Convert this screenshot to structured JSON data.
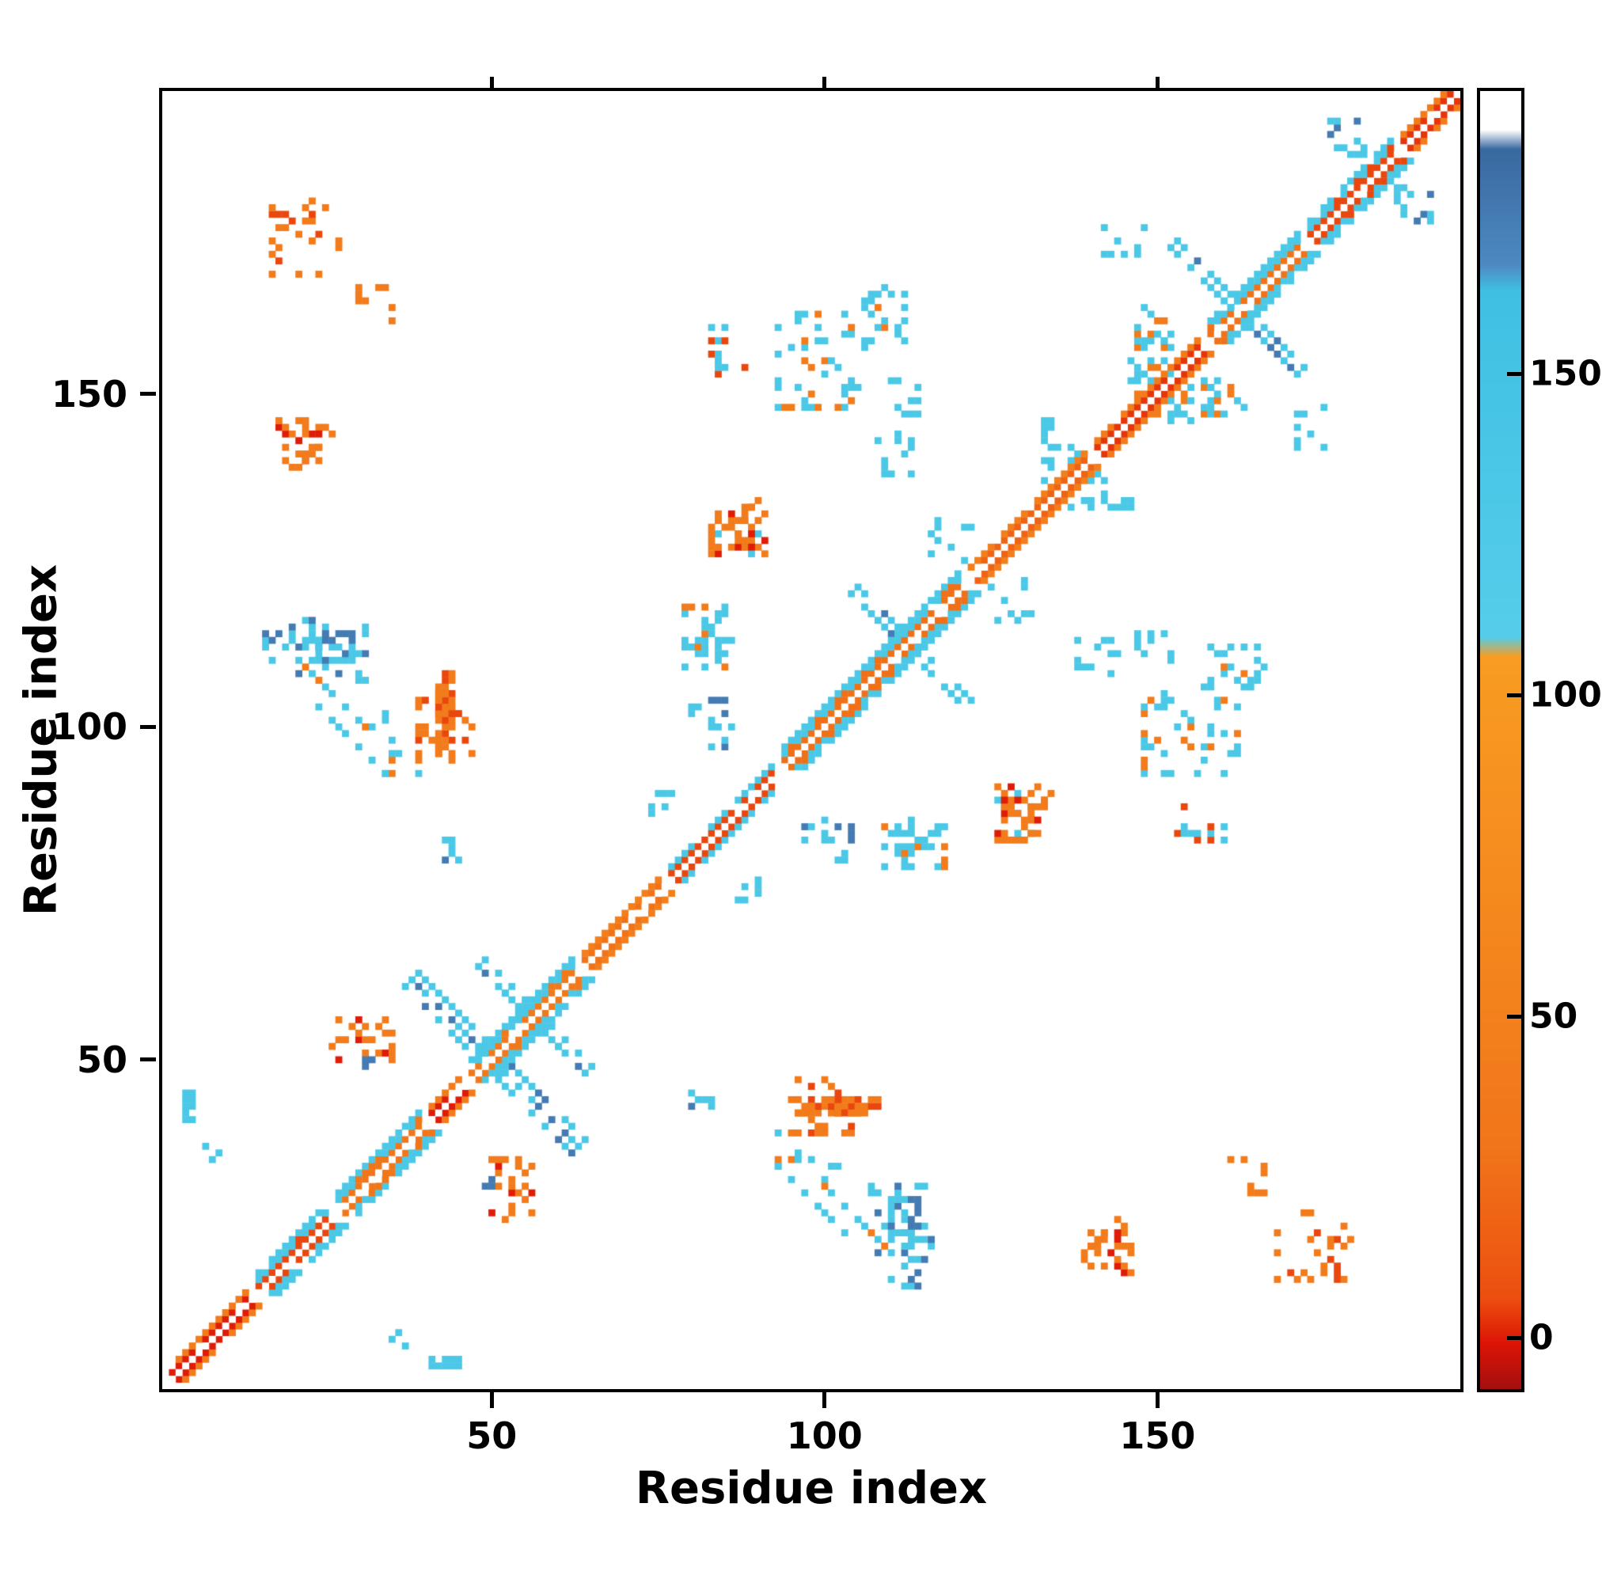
{
  "chart_data": {
    "type": "heatmap",
    "title": "",
    "xlabel": "Residue index",
    "ylabel": "Residue index",
    "x_range": [
      1,
      195
    ],
    "y_range": [
      1,
      195
    ],
    "x_ticks": [
      50,
      100,
      150
    ],
    "y_ticks": [
      50,
      100,
      150
    ],
    "grid": false,
    "legend": "colorbar-right",
    "seed": 20240607,
    "colorbar": {
      "range": [
        -8,
        194
      ],
      "ticks": [
        0,
        50,
        100,
        150
      ],
      "tick_labels": [
        "0",
        "50",
        "100",
        "150"
      ],
      "stops": [
        {
          "v": -8,
          "c": "#a50f0f"
        },
        {
          "v": -1,
          "c": "#dc1405"
        },
        {
          "v": 6,
          "c": "#ec4f10"
        },
        {
          "v": 30,
          "c": "#f1761a"
        },
        {
          "v": 106,
          "c": "#f89c22"
        },
        {
          "v": 109,
          "c": "#55cdea"
        },
        {
          "v": 163,
          "c": "#3fc0e3"
        },
        {
          "v": 167,
          "c": "#4e89c2"
        },
        {
          "v": 185,
          "c": "#38699f"
        },
        {
          "v": 188,
          "c": "#ffffff"
        },
        {
          "v": 194,
          "c": "#ffffff"
        }
      ]
    },
    "value_classes": {
      "red": 0,
      "orange": 40,
      "cyan": 130,
      "blue": 175
    },
    "white_diagonal": true,
    "diagonal_segments": [
      {
        "from": 1,
        "to": 14,
        "inner": 0,
        "outer": 40,
        "width": 2
      },
      {
        "from": 14,
        "to": 26,
        "inner": 5,
        "outer": 130,
        "width": 3
      },
      {
        "from": 26,
        "to": 40,
        "inner": 30,
        "outer": 130,
        "width": 3
      },
      {
        "from": 40,
        "to": 46,
        "inner": 0,
        "outer": 40,
        "width": 2
      },
      {
        "from": 46,
        "to": 63,
        "inner": 35,
        "outer": 130,
        "width": 3
      },
      {
        "from": 63,
        "to": 76,
        "inner": 28,
        "outer": 48,
        "width": 2
      },
      {
        "from": 76,
        "to": 93,
        "inner": 5,
        "outer": 130,
        "width": 2
      },
      {
        "from": 93,
        "to": 121,
        "inner": 26,
        "outer": 130,
        "width": 3
      },
      {
        "from": 121,
        "to": 140,
        "inner": 18,
        "outer": 45,
        "width": 2
      },
      {
        "from": 140,
        "to": 157,
        "inner": 3,
        "outer": 40,
        "width": 2
      },
      {
        "from": 157,
        "to": 172,
        "inner": 28,
        "outer": 130,
        "width": 3
      },
      {
        "from": 172,
        "to": 186,
        "inner": 5,
        "outer": 130,
        "width": 3
      },
      {
        "from": 186,
        "to": 196,
        "inner": 3,
        "outer": 40,
        "width": 2
      }
    ],
    "clusters": [
      {
        "shape": "anti",
        "x": 38,
        "y": 62,
        "len": 25,
        "thick": 3,
        "density": 0.72,
        "value": 130,
        "value2": 175,
        "mix": 0.3,
        "mirror": false
      },
      {
        "shape": "anti",
        "x": 48,
        "y": 64,
        "len": 12,
        "thick": 2,
        "density": 0.55,
        "value": 130,
        "value2": 175,
        "mix": 0.2,
        "mirror": true
      },
      {
        "shape": "anti",
        "x": 103,
        "y": 121,
        "len": 18,
        "thick": 2,
        "density": 0.55,
        "value": 130,
        "value2": 175,
        "mix": 0.15,
        "mirror": false
      },
      {
        "shape": "anti",
        "x": 152,
        "y": 172,
        "len": 19,
        "thick": 2,
        "density": 0.6,
        "value": 130,
        "value2": 175,
        "mix": 0.25,
        "mirror": false
      },
      {
        "shape": "blob",
        "x": 42,
        "y": 96,
        "w": 3,
        "h": 13,
        "density": 0.7,
        "value": 40,
        "value2": 5,
        "mix": 0.25,
        "mirror": true
      },
      {
        "shape": "blob",
        "x": 32,
        "y": 93,
        "w": 8,
        "h": 10,
        "density": 0.2,
        "value": 130,
        "value2": 40,
        "mix": 0.2,
        "mirror": true
      },
      {
        "shape": "blob",
        "x": 20,
        "y": 107,
        "w": 12,
        "h": 10,
        "density": 0.28,
        "value": 130,
        "value2": 175,
        "mix": 0.3,
        "mirror": true
      },
      {
        "shape": "blob",
        "x": 26,
        "y": 50,
        "w": 10,
        "h": 7,
        "density": 0.32,
        "value": 40,
        "value2": 0,
        "mix": 0.3,
        "mirror": true
      },
      {
        "shape": "blob",
        "x": 31,
        "y": 49,
        "w": 2,
        "h": 2,
        "density": 0.9,
        "value": 175,
        "mirror": true
      },
      {
        "shape": "blob",
        "x": 3,
        "y": 41,
        "w": 3,
        "h": 5,
        "density": 0.55,
        "value": 130,
        "mirror": true
      },
      {
        "shape": "blob",
        "x": 7,
        "y": 35,
        "w": 3,
        "h": 3,
        "density": 0.5,
        "value": 130,
        "mirror": true
      },
      {
        "shape": "blob",
        "x": 43,
        "y": 80,
        "w": 3,
        "h": 4,
        "density": 0.6,
        "value": 175,
        "value2": 130,
        "mix": 0.4,
        "mirror": true
      },
      {
        "shape": "anti",
        "x": 23,
        "y": 104,
        "len": 11,
        "thick": 1,
        "density": 0.4,
        "value": 130,
        "mirror": true
      },
      {
        "shape": "blob",
        "x": 79,
        "y": 109,
        "w": 8,
        "h": 10,
        "density": 0.32,
        "value": 130,
        "value2": 40,
        "mix": 0.25,
        "mirror": true
      },
      {
        "shape": "blob",
        "x": 93,
        "y": 148,
        "w": 13,
        "h": 15,
        "density": 0.22,
        "value": 130,
        "value2": 40,
        "mix": 0.3,
        "mirror": true
      },
      {
        "shape": "blob",
        "x": 83,
        "y": 153,
        "w": 6,
        "h": 8,
        "density": 0.32,
        "value": 130,
        "value2": 5,
        "mix": 0.25,
        "mirror": true
      },
      {
        "shape": "blob",
        "x": 83,
        "y": 126,
        "w": 8,
        "h": 9,
        "density": 0.28,
        "value": 40,
        "value2": 130,
        "mix": 0.35,
        "mirror": true
      },
      {
        "shape": "blob",
        "x": 133,
        "y": 137,
        "w": 6,
        "h": 10,
        "density": 0.26,
        "value": 130,
        "mirror": true
      },
      {
        "shape": "blob",
        "x": 146,
        "y": 150,
        "w": 7,
        "h": 9,
        "density": 0.3,
        "value": 130,
        "value2": 40,
        "mix": 0.3,
        "mirror": true
      },
      {
        "shape": "blob",
        "x": 22,
        "y": 140,
        "w": 5,
        "h": 6,
        "density": 0.35,
        "value": 40,
        "value2": 0,
        "mix": 0.35,
        "mirror": true
      },
      {
        "shape": "blob",
        "x": 17,
        "y": 168,
        "w": 11,
        "h": 12,
        "density": 0.2,
        "value": 40,
        "value2": 5,
        "mix": 0.3,
        "mirror": true
      },
      {
        "shape": "blob",
        "x": 30,
        "y": 159,
        "w": 6,
        "h": 8,
        "density": 0.25,
        "value": 40,
        "mirror": true
      },
      {
        "shape": "blob",
        "x": 106,
        "y": 157,
        "w": 7,
        "h": 10,
        "density": 0.26,
        "value": 130,
        "value2": 40,
        "mix": 0.2,
        "mirror": true
      },
      {
        "shape": "blob",
        "x": 116,
        "y": 124,
        "w": 7,
        "h": 8,
        "density": 0.26,
        "value": 130,
        "mirror": true
      },
      {
        "shape": "blob",
        "x": 80,
        "y": 97,
        "w": 7,
        "h": 8,
        "density": 0.26,
        "value": 130,
        "value2": 175,
        "mix": 0.3,
        "mirror": true
      },
      {
        "shape": "blob",
        "x": 108,
        "y": 138,
        "w": 6,
        "h": 7,
        "density": 0.24,
        "value": 130,
        "mirror": true
      },
      {
        "shape": "anti",
        "x": 95,
        "y": 36,
        "len": 15,
        "thick": 1,
        "density": 0.45,
        "value": 130,
        "value2": 40,
        "mix": 0.2,
        "mirror": true
      },
      {
        "shape": "blob",
        "x": 110,
        "y": 16,
        "w": 5,
        "h": 14,
        "density": 0.35,
        "value": 130,
        "value2": 175,
        "mix": 0.4,
        "mirror": true
      },
      {
        "shape": "blob",
        "x": 95,
        "y": 39,
        "w": 11,
        "h": 9,
        "density": 0.3,
        "value": 40,
        "value2": 5,
        "mix": 0.3,
        "mirror": true
      },
      {
        "shape": "blob",
        "x": 139,
        "y": 18,
        "w": 8,
        "h": 8,
        "density": 0.26,
        "value": 40,
        "value2": 0,
        "mix": 0.3,
        "mirror": true
      },
      {
        "shape": "blob",
        "x": 126,
        "y": 83,
        "w": 8,
        "h": 9,
        "density": 0.3,
        "value": 40,
        "value2": 0,
        "mix": 0.3,
        "mirror": true
      },
      {
        "shape": "blob",
        "x": 170,
        "y": 142,
        "w": 6,
        "h": 7,
        "density": 0.26,
        "value": 130,
        "mirror": true
      },
      {
        "shape": "blob",
        "x": 74,
        "y": 87,
        "w": 5,
        "h": 5,
        "density": 0.35,
        "value": 130,
        "mirror": true
      },
      {
        "shape": "blob",
        "x": 147,
        "y": 109,
        "w": 6,
        "h": 6,
        "density": 0.26,
        "value": 130,
        "mirror": true
      },
      {
        "shape": "blob",
        "x": 158,
        "y": 147,
        "w": 6,
        "h": 7,
        "density": 0.3,
        "value": 130,
        "value2": 40,
        "mix": 0.3,
        "mirror": true
      },
      {
        "shape": "blob",
        "x": 176,
        "y": 186,
        "w": 6,
        "h": 6,
        "density": 0.3,
        "value": 130,
        "value2": 175,
        "mix": 0.3,
        "mirror": true
      }
    ]
  }
}
